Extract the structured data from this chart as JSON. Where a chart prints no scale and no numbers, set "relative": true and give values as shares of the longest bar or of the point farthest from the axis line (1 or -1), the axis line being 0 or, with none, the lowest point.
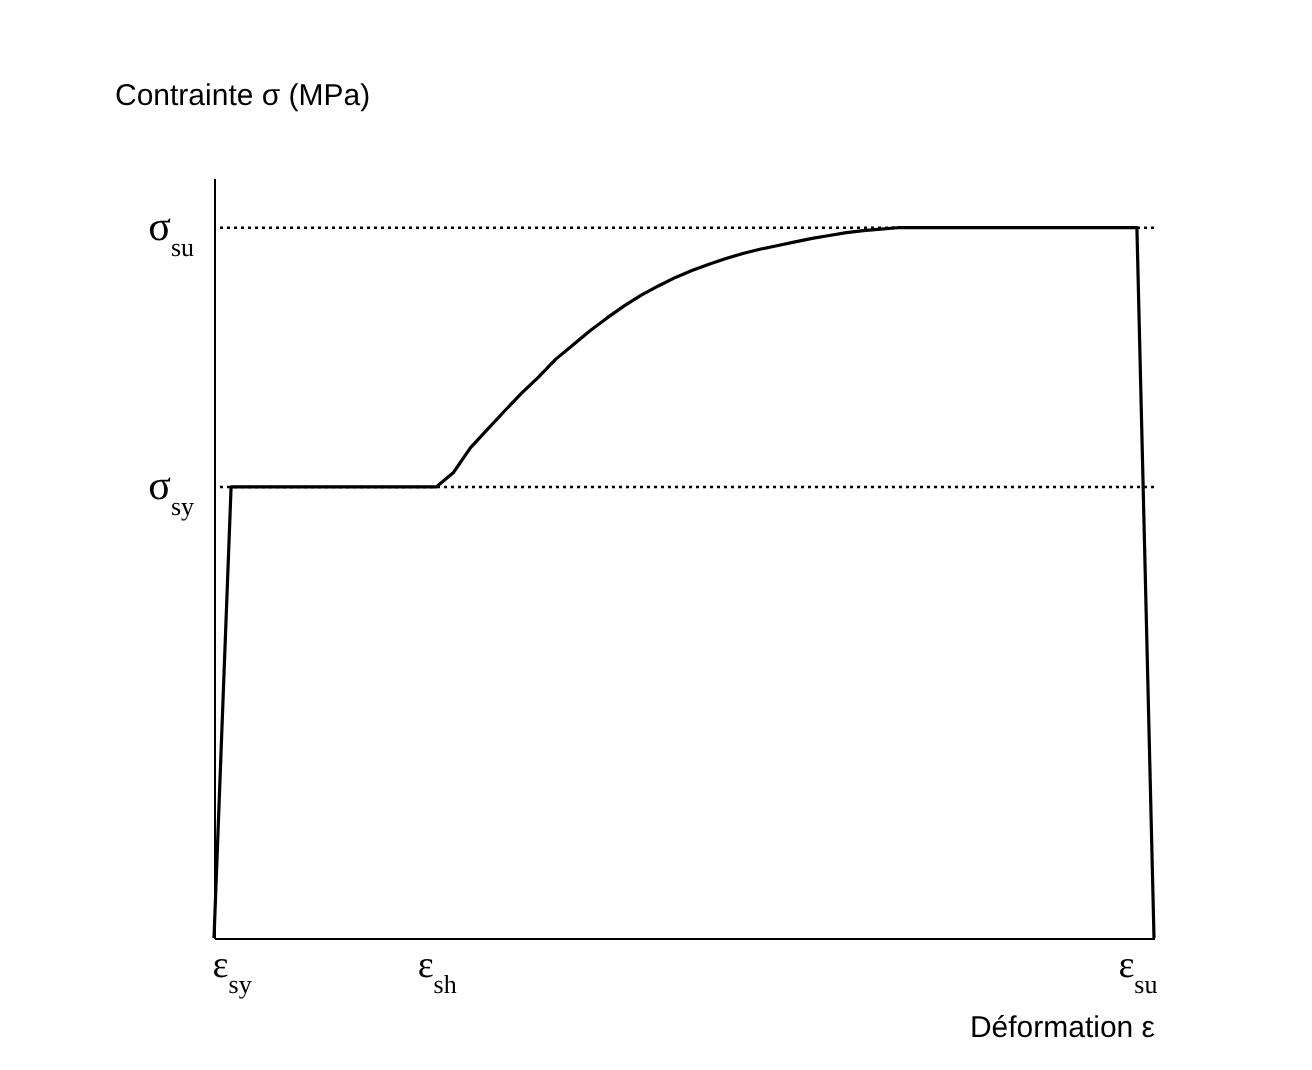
{
  "chart_data": {
    "type": "line",
    "relative": true,
    "xlabel": "Déformation ε",
    "ylabel": "Contrainte σ (MPa)",
    "categories": [
      null,
      "ε$_{sy}$",
      null,
      null,
      null,
      null,
      null,
      null,
      null,
      null,
      null,
      null,
      null,
      "ε$_{sh}$",
      null,
      null,
      null,
      null,
      null,
      null,
      null,
      null,
      null,
      null,
      null,
      null,
      null,
      null,
      null,
      null,
      null,
      null,
      null,
      null,
      null,
      null,
      null,
      null,
      null,
      null,
      null,
      null,
      null,
      null,
      null,
      null,
      null,
      null,
      null,
      null,
      null,
      null,
      null,
      null,
      "ε$_{su}$",
      null
    ],
    "series": [
      {
        "color": "#000000",
        "values": [
          0,
          0.635,
          0.635,
          0.635,
          0.635,
          0.635,
          0.635,
          0.635,
          0.635,
          0.635,
          0.635,
          0.635,
          0.635,
          0.635,
          0.655,
          0.69,
          0.716,
          0.742,
          0.767,
          0.79,
          0.815,
          0.835,
          0.855,
          0.873,
          0.89,
          0.905,
          0.918,
          0.93,
          0.94,
          0.949,
          0.957,
          0.964,
          0.97,
          0.975,
          0.98,
          0.985,
          0.989,
          0.993,
          0.996,
          0.998,
          1,
          1,
          1,
          1,
          1,
          1,
          1,
          1,
          1,
          1,
          1,
          1,
          1,
          1,
          1,
          0
        ]
      }
    ],
    "ref_lines": [
      {
        "axis": "y",
        "value": 1,
        "label": "σ$_{su}$",
        "line_style": "dotted"
      },
      {
        "axis": "y",
        "value": 0.635,
        "label": "σ$_{sy}$",
        "line_style": "dotted"
      }
    ],
    "grid": false,
    "marker": "none",
    "line_style": "solid"
  }
}
